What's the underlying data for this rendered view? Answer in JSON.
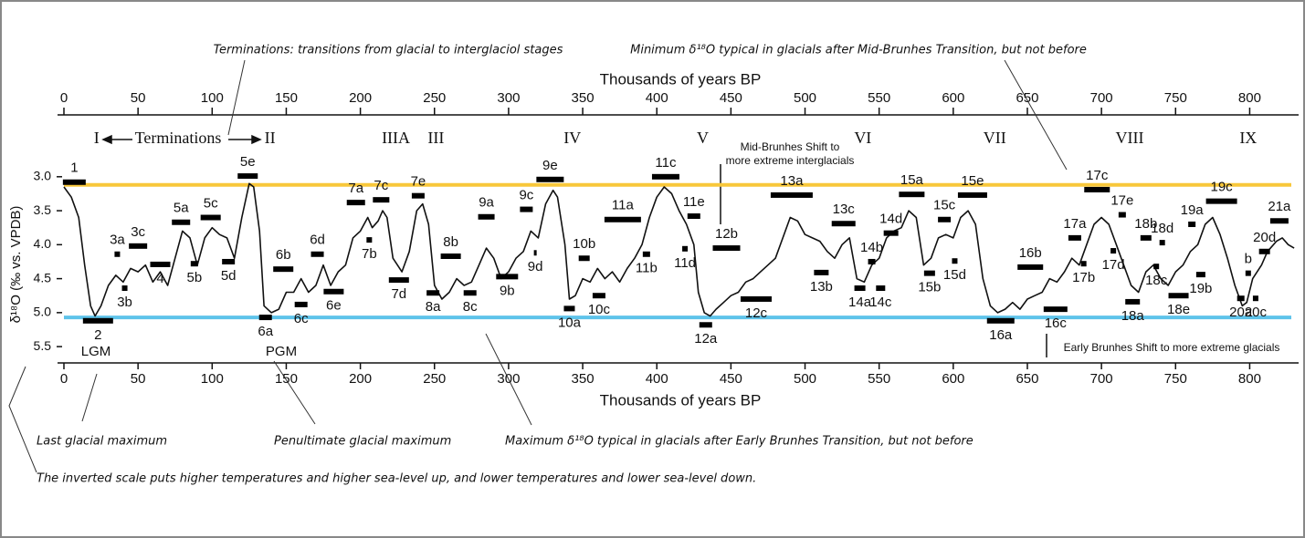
{
  "chart_data": {
    "type": "line",
    "x_label": "Thousands of years BP",
    "y_label": "δ¹⁸O (‰ vs. VPDB)",
    "color": "#111111",
    "xlim": [
      0,
      833
    ],
    "xticks": [
      0,
      50,
      100,
      150,
      200,
      250,
      300,
      350,
      400,
      450,
      500,
      550,
      600,
      650,
      700,
      750,
      800
    ],
    "ylim": [
      5.74,
      2.09
    ],
    "yticks": [
      {
        "value": 3,
        "label": "3.0"
      },
      3.5,
      {
        "value": 4,
        "label": "4.0"
      },
      4.5,
      {
        "value": 5,
        "label": "5.0"
      },
      5.5
    ],
    "x": [
      0,
      5,
      10,
      14,
      18,
      21,
      25,
      30,
      35,
      40,
      45,
      50,
      55,
      60,
      65,
      70,
      75,
      80,
      85,
      90,
      95,
      100,
      105,
      110,
      115,
      120,
      125,
      128,
      132,
      135,
      140,
      145,
      150,
      155,
      160,
      165,
      170,
      175,
      180,
      185,
      190,
      195,
      200,
      205,
      208,
      212,
      215,
      218,
      222,
      228,
      233,
      238,
      242,
      246,
      250,
      255,
      260,
      265,
      270,
      275,
      280,
      285,
      290,
      295,
      300,
      305,
      310,
      315,
      320,
      325,
      330,
      333,
      338,
      341,
      345,
      350,
      355,
      360,
      365,
      370,
      375,
      380,
      385,
      390,
      395,
      400,
      405,
      410,
      415,
      420,
      425,
      428,
      432,
      436,
      440,
      445,
      450,
      455,
      460,
      465,
      470,
      475,
      480,
      485,
      490,
      495,
      500,
      505,
      510,
      515,
      520,
      525,
      530,
      535,
      540,
      545,
      550,
      555,
      560,
      565,
      570,
      575,
      580,
      585,
      590,
      595,
      600,
      605,
      610,
      615,
      620,
      625,
      630,
      635,
      640,
      645,
      650,
      655,
      660,
      665,
      670,
      675,
      680,
      685,
      690,
      695,
      700,
      705,
      710,
      715,
      720,
      725,
      730,
      735,
      740,
      745,
      750,
      755,
      760,
      765,
      770,
      775,
      780,
      785,
      790,
      795,
      798,
      802,
      808,
      812,
      818,
      822,
      826,
      830
    ],
    "values": [
      3.15,
      3.3,
      3.6,
      4.3,
      4.9,
      5.05,
      4.9,
      4.6,
      4.45,
      4.55,
      4.35,
      4.4,
      4.3,
      4.55,
      4.4,
      4.6,
      4.2,
      3.8,
      3.9,
      4.3,
      3.9,
      3.75,
      3.85,
      3.9,
      4.2,
      3.6,
      3.1,
      3.15,
      3.8,
      4.9,
      5.0,
      4.95,
      4.7,
      4.7,
      4.5,
      4.7,
      4.6,
      4.3,
      4.6,
      4.4,
      4.3,
      3.9,
      3.8,
      3.6,
      3.75,
      3.65,
      3.5,
      3.6,
      4.2,
      4.4,
      4.1,
      3.5,
      3.4,
      3.7,
      4.6,
      4.8,
      4.7,
      4.5,
      4.6,
      4.55,
      4.3,
      4.05,
      4.2,
      4.5,
      4.4,
      4.2,
      4.1,
      3.8,
      3.9,
      3.4,
      3.2,
      3.3,
      4.0,
      4.8,
      4.75,
      4.5,
      4.55,
      4.35,
      4.5,
      4.4,
      4.55,
      4.35,
      4.2,
      4.0,
      3.6,
      3.3,
      3.15,
      3.25,
      3.5,
      3.7,
      4.0,
      4.7,
      5.0,
      5.05,
      4.95,
      4.85,
      4.75,
      4.7,
      4.55,
      4.5,
      4.4,
      4.3,
      4.2,
      3.9,
      3.6,
      3.65,
      3.85,
      3.9,
      3.95,
      4.1,
      4.2,
      4.0,
      3.9,
      4.5,
      4.55,
      4.3,
      4.2,
      3.9,
      3.8,
      3.75,
      3.5,
      3.6,
      4.3,
      4.2,
      3.9,
      3.85,
      3.9,
      3.6,
      3.5,
      3.7,
      4.5,
      4.9,
      5.0,
      4.95,
      4.85,
      4.95,
      4.8,
      4.75,
      4.7,
      4.5,
      4.55,
      4.4,
      4.2,
      4.3,
      4.0,
      3.7,
      3.6,
      3.7,
      4.0,
      4.3,
      4.6,
      4.7,
      4.4,
      4.3,
      4.5,
      4.6,
      4.4,
      4.3,
      4.1,
      4.0,
      3.7,
      3.6,
      3.85,
      4.2,
      4.6,
      4.9,
      4.85,
      4.5,
      4.3,
      4.1,
      3.95,
      3.9,
      4.0,
      4.05
    ],
    "reference_lines": [
      {
        "value": 3.12,
        "color": "#f8c73a"
      },
      {
        "value": 5.07,
        "color": "#5ec3ea"
      }
    ],
    "stages": [
      {
        "label": "1",
        "x": 7,
        "y": 3.08
      },
      {
        "label": "2",
        "x": 23,
        "y": 5.12
      },
      {
        "label": "3a",
        "x": 36,
        "y": 4.14
      },
      {
        "label": "3b",
        "x": 41,
        "y": 4.64
      },
      {
        "label": "3c",
        "x": 50,
        "y": 4.02
      },
      {
        "label": "4",
        "x": 65,
        "y": 4.29
      },
      {
        "label": "5a",
        "x": 79,
        "y": 3.67
      },
      {
        "label": "5b",
        "x": 88,
        "y": 4.28
      },
      {
        "label": "5c",
        "x": 99,
        "y": 3.6
      },
      {
        "label": "5d",
        "x": 111,
        "y": 4.25
      },
      {
        "label": "5e",
        "x": 124,
        "y": 2.99
      },
      {
        "label": "6a",
        "x": 136,
        "y": 5.07
      },
      {
        "label": "6b",
        "x": 148,
        "y": 4.36
      },
      {
        "label": "6c",
        "x": 160,
        "y": 4.88
      },
      {
        "label": "6d",
        "x": 171,
        "y": 4.14
      },
      {
        "label": "6e",
        "x": 182,
        "y": 4.69
      },
      {
        "label": "7a",
        "x": 197,
        "y": 3.38
      },
      {
        "label": "7b",
        "x": 206,
        "y": 3.93
      },
      {
        "label": "7c",
        "x": 214,
        "y": 3.34
      },
      {
        "label": "7d",
        "x": 226,
        "y": 4.52
      },
      {
        "label": "7e",
        "x": 239,
        "y": 3.28
      },
      {
        "label": "8a",
        "x": 249,
        "y": 4.71
      },
      {
        "label": "8b",
        "x": 261,
        "y": 4.17
      },
      {
        "label": "8c",
        "x": 274,
        "y": 4.71
      },
      {
        "label": "9a",
        "x": 285,
        "y": 3.59
      },
      {
        "label": "9b",
        "x": 299,
        "y": 4.47
      },
      {
        "label": "9c",
        "x": 312,
        "y": 3.48
      },
      {
        "label": "9d",
        "x": 318,
        "y": 4.12
      },
      {
        "label": "9e",
        "x": 328,
        "y": 3.04
      },
      {
        "label": "10a",
        "x": 341,
        "y": 4.94
      },
      {
        "label": "10b",
        "x": 351,
        "y": 4.2
      },
      {
        "label": "10c",
        "x": 361,
        "y": 4.75
      },
      {
        "label": "11a",
        "x": 377,
        "y": 3.63
      },
      {
        "label": "11b",
        "x": 393,
        "y": 4.14
      },
      {
        "label": "11c",
        "x": 406,
        "y": 3.0
      },
      {
        "label": "11d",
        "x": 419,
        "y": 4.06
      },
      {
        "label": "11e",
        "x": 425,
        "y": 3.58
      },
      {
        "label": "12a",
        "x": 433,
        "y": 5.18
      },
      {
        "label": "12b",
        "x": 447,
        "y": 4.05
      },
      {
        "label": "12c",
        "x": 467,
        "y": 4.8
      },
      {
        "label": "13a",
        "x": 491,
        "y": 3.27
      },
      {
        "label": "13b",
        "x": 511,
        "y": 4.41
      },
      {
        "label": "13c",
        "x": 526,
        "y": 3.69
      },
      {
        "label": "14a",
        "x": 537,
        "y": 4.64
      },
      {
        "label": "14b",
        "x": 545,
        "y": 4.25
      },
      {
        "label": "14c",
        "x": 551,
        "y": 4.64
      },
      {
        "label": "14d",
        "x": 558,
        "y": 3.83
      },
      {
        "label": "15a",
        "x": 572,
        "y": 3.26
      },
      {
        "label": "15b",
        "x": 584,
        "y": 4.42
      },
      {
        "label": "15c",
        "x": 594,
        "y": 3.63
      },
      {
        "label": "15d",
        "x": 601,
        "y": 4.24
      },
      {
        "label": "15e",
        "x": 613,
        "y": 3.27
      },
      {
        "label": "16a",
        "x": 632,
        "y": 5.12
      },
      {
        "label": "16b",
        "x": 652,
        "y": 4.33
      },
      {
        "label": "16c",
        "x": 669,
        "y": 4.95
      },
      {
        "label": "17a",
        "x": 682,
        "y": 3.9
      },
      {
        "label": "17b",
        "x": 688,
        "y": 4.28
      },
      {
        "label": "17c",
        "x": 697,
        "y": 3.19
      },
      {
        "label": "17d",
        "x": 708,
        "y": 4.09
      },
      {
        "label": "17e",
        "x": 714,
        "y": 3.56
      },
      {
        "label": "18a",
        "x": 721,
        "y": 4.84
      },
      {
        "label": "18b",
        "x": 730,
        "y": 3.9
      },
      {
        "label": "18c",
        "x": 737,
        "y": 4.32
      },
      {
        "label": "18d",
        "x": 741,
        "y": 3.97
      },
      {
        "label": "18e",
        "x": 752,
        "y": 4.75
      },
      {
        "label": "19a",
        "x": 761,
        "y": 3.7
      },
      {
        "label": "19b",
        "x": 767,
        "y": 4.44
      },
      {
        "label": "19c",
        "x": 781,
        "y": 3.36
      },
      {
        "label": "20a",
        "x": 794,
        "y": 4.79
      },
      {
        "label": "b",
        "x": 799,
        "y": 4.42
      },
      {
        "label": "20c",
        "x": 804,
        "y": 4.79
      },
      {
        "label": "20d",
        "x": 810,
        "y": 4.1
      },
      {
        "label": "21a",
        "x": 820,
        "y": 3.65
      }
    ],
    "terminations_label": "Terminations",
    "terminations": [
      {
        "label": "I",
        "x": 22
      },
      {
        "label": "II",
        "x": 139
      },
      {
        "label": "IIIA",
        "x": 224
      },
      {
        "label": "III",
        "x": 251
      },
      {
        "label": "IV",
        "x": 343
      },
      {
        "label": "V",
        "x": 431
      },
      {
        "label": "VI",
        "x": 539
      },
      {
        "label": "VII",
        "x": 628
      },
      {
        "label": "VIII",
        "x": 719
      },
      {
        "label": "IX",
        "x": 799
      }
    ],
    "annotations": [
      "Terminations: transitions from glacial to interglaciol stages",
      "Minimum δ¹⁸O typical in glacials after Mid-Brunhes Transition, but not before",
      "Last glacial maximum",
      "Penultimate glacial maximum",
      "Maximum δ¹⁸O typical in glacials after Early Brunhes Transition, but not before",
      "The inverted scale puts higher temperatures and higher sea-level up, and lower temperatures and lower sea-level down.",
      "LGM",
      "PGM",
      "Mid-Brunhes Shift to",
      "more extreme interglacials",
      "Early Brunhes Shift to more extreme glacials"
    ]
  }
}
